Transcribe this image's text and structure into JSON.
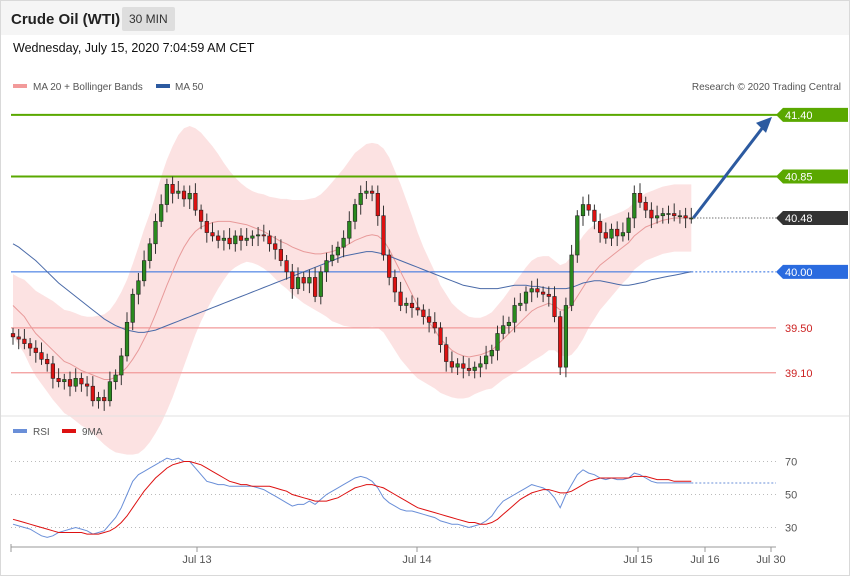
{
  "header": {
    "title": "Crude Oil (WTI)",
    "interval": "30 MIN"
  },
  "timestamp": "Wednesday, July 15, 2020 7:04:59 AM CET",
  "legend": {
    "ma20": "MA 20 + Bollinger Bands",
    "ma50": "MA 50",
    "rsi": "RSI",
    "ma9": "9MA"
  },
  "copyright": "Research © 2020 Trading Central",
  "colors": {
    "candle": "#dd1111",
    "candle_dark": "#222222",
    "band": "#fbd8d8",
    "ma20": "#e89a9a",
    "ma50": "#4a6aa8",
    "target": "#5aa800",
    "pivot": "#2a6bdf",
    "support": "#f29a9a",
    "last": "#333333",
    "rsi": "#6a8fd8",
    "rsi_ma": "#dd1111",
    "arrow": "#2c5aa0"
  },
  "chart_data": [
    {
      "type": "candlestick",
      "y_range": [
        38.75,
        41.55
      ],
      "x_ticks": [
        "Jul 13",
        "Jul 14",
        "Jul 15",
        "Jul 16",
        "Jul 30"
      ],
      "levels": [
        {
          "label": "41.40",
          "value": 41.4,
          "kind": "target"
        },
        {
          "label": "40.85",
          "value": 40.85,
          "kind": "target"
        },
        {
          "label": "40.48",
          "value": 40.48,
          "kind": "last"
        },
        {
          "label": "40.00",
          "value": 40.0,
          "kind": "pivot"
        },
        {
          "label": "39.50",
          "value": 39.5,
          "kind": "support"
        },
        {
          "label": "39.10",
          "value": 39.1,
          "kind": "support"
        }
      ],
      "close": [
        39.42,
        39.4,
        39.36,
        39.32,
        39.28,
        39.22,
        39.18,
        39.05,
        39.02,
        39.04,
        38.98,
        39.05,
        39.0,
        38.98,
        38.85,
        38.88,
        38.85,
        39.02,
        39.08,
        39.25,
        39.55,
        39.8,
        39.92,
        40.1,
        40.25,
        40.45,
        40.6,
        40.78,
        40.7,
        40.72,
        40.65,
        40.7,
        40.55,
        40.45,
        40.35,
        40.32,
        40.28,
        40.3,
        40.25,
        40.32,
        40.28,
        40.3,
        40.32,
        40.33,
        40.32,
        40.25,
        40.2,
        40.1,
        40.0,
        39.85,
        39.95,
        39.9,
        39.95,
        39.78,
        40.0,
        40.1,
        40.15,
        40.22,
        40.3,
        40.45,
        40.6,
        40.7,
        40.72,
        40.7,
        40.5,
        40.15,
        39.95,
        39.82,
        39.7,
        39.72,
        39.68,
        39.66,
        39.6,
        39.55,
        39.5,
        39.35,
        39.2,
        39.15,
        39.18,
        39.14,
        39.12,
        39.15,
        39.18,
        39.25,
        39.3,
        39.45,
        39.52,
        39.55,
        39.7,
        39.72,
        39.82,
        39.85,
        39.82,
        39.8,
        39.78,
        39.6,
        39.15,
        39.7,
        40.15,
        40.5,
        40.6,
        40.55,
        40.45,
        40.35,
        40.3,
        40.38,
        40.32,
        40.35,
        40.48,
        40.7,
        40.62,
        40.55,
        40.48,
        40.5,
        40.52,
        40.52,
        40.5,
        40.5,
        40.48,
        40.48
      ],
      "ma20": [
        39.7,
        39.65,
        39.6,
        39.52,
        39.45,
        39.4,
        39.35,
        39.3,
        39.25,
        39.2,
        39.18,
        39.15,
        39.12,
        39.1,
        39.08,
        39.06,
        39.04,
        39.04,
        39.06,
        39.1,
        39.15,
        39.22,
        39.3,
        39.4,
        39.5,
        39.62,
        39.75,
        39.88,
        40.0,
        40.12,
        40.22,
        40.3,
        40.36,
        40.4,
        40.42,
        40.44,
        40.45,
        40.45,
        40.45,
        40.44,
        40.43,
        40.42,
        40.4,
        40.38,
        40.36,
        40.33,
        40.3,
        40.27,
        40.25,
        40.22,
        40.2,
        40.18,
        40.17,
        40.16,
        40.16,
        40.17,
        40.18,
        40.2,
        40.22,
        40.25,
        40.28,
        40.3,
        40.32,
        40.33,
        40.32,
        40.28,
        40.2,
        40.1,
        40.0,
        39.9,
        39.8,
        39.7,
        39.62,
        39.55,
        39.48,
        39.4,
        39.35,
        39.3,
        39.27,
        39.25,
        39.24,
        39.25,
        39.26,
        39.28,
        39.3,
        39.35,
        39.4,
        39.45,
        39.5,
        39.55,
        39.6,
        39.65,
        39.68,
        39.7,
        39.72,
        39.7,
        39.66,
        39.66,
        39.7,
        39.78,
        39.86,
        39.94,
        40.0,
        40.06,
        40.1,
        40.14,
        40.18,
        40.22,
        40.26,
        40.32,
        40.36,
        40.4,
        40.42,
        40.44,
        40.46,
        40.47,
        40.48,
        40.48,
        40.48,
        40.48
      ],
      "bb_width": [
        0.28,
        0.3,
        0.33,
        0.36,
        0.38,
        0.4,
        0.42,
        0.44,
        0.45,
        0.46,
        0.47,
        0.48,
        0.49,
        0.5,
        0.52,
        0.55,
        0.58,
        0.62,
        0.67,
        0.72,
        0.78,
        0.85,
        0.92,
        0.98,
        1.02,
        1.06,
        1.1,
        1.12,
        1.12,
        1.1,
        1.06,
        1.0,
        0.92,
        0.84,
        0.76,
        0.68,
        0.6,
        0.52,
        0.45,
        0.4,
        0.36,
        0.33,
        0.32,
        0.32,
        0.33,
        0.34,
        0.36,
        0.38,
        0.4,
        0.42,
        0.44,
        0.46,
        0.48,
        0.5,
        0.53,
        0.57,
        0.62,
        0.66,
        0.7,
        0.74,
        0.78,
        0.8,
        0.82,
        0.82,
        0.82,
        0.82,
        0.82,
        0.8,
        0.78,
        0.74,
        0.7,
        0.65,
        0.6,
        0.56,
        0.52,
        0.48,
        0.45,
        0.42,
        0.4,
        0.38,
        0.36,
        0.34,
        0.33,
        0.33,
        0.34,
        0.35,
        0.36,
        0.38,
        0.4,
        0.42,
        0.44,
        0.45,
        0.45,
        0.44,
        0.42,
        0.4,
        0.4,
        0.42,
        0.44,
        0.46,
        0.46,
        0.44,
        0.42,
        0.4,
        0.38,
        0.36,
        0.34,
        0.32,
        0.31,
        0.3,
        0.3,
        0.3,
        0.3,
        0.3,
        0.3,
        0.3,
        0.3,
        0.3,
        0.3,
        0.3
      ],
      "ma50": [
        40.25,
        40.22,
        40.18,
        40.14,
        40.1,
        40.05,
        40.0,
        39.95,
        39.9,
        39.86,
        39.82,
        39.78,
        39.74,
        39.7,
        39.66,
        39.62,
        39.58,
        39.55,
        39.52,
        39.5,
        39.48,
        39.47,
        39.46,
        39.46,
        39.47,
        39.48,
        39.5,
        39.52,
        39.54,
        39.56,
        39.58,
        39.6,
        39.62,
        39.64,
        39.66,
        39.68,
        39.7,
        39.72,
        39.74,
        39.76,
        39.78,
        39.8,
        39.82,
        39.84,
        39.86,
        39.88,
        39.9,
        39.92,
        39.94,
        39.96,
        39.98,
        40.0,
        40.02,
        40.04,
        40.06,
        40.08,
        40.1,
        40.12,
        40.14,
        40.15,
        40.16,
        40.17,
        40.18,
        40.18,
        40.17,
        40.16,
        40.14,
        40.12,
        40.1,
        40.08,
        40.06,
        40.04,
        40.02,
        40.0,
        39.98,
        39.96,
        39.94,
        39.92,
        39.9,
        39.88,
        39.87,
        39.86,
        39.85,
        39.85,
        39.85,
        39.85,
        39.86,
        39.87,
        39.88,
        39.88,
        39.88,
        39.87,
        39.87,
        39.86,
        39.85,
        39.85,
        39.85,
        39.85,
        39.86,
        39.88,
        39.9,
        39.91,
        39.92,
        39.92,
        39.91,
        39.9,
        39.89,
        39.88,
        39.88,
        39.89,
        39.9,
        39.91,
        39.93,
        39.94,
        39.95,
        39.96,
        39.97,
        39.98,
        39.99,
        40.0
      ]
    },
    {
      "type": "line",
      "y_range": [
        20,
        80
      ],
      "y_ticks": [
        "70",
        "50",
        "30"
      ],
      "rsi": [
        32,
        31,
        30,
        29,
        27,
        25,
        24,
        25,
        27,
        28,
        29,
        30,
        29,
        28,
        26,
        27,
        28,
        32,
        36,
        42,
        50,
        58,
        62,
        64,
        66,
        68,
        70,
        72,
        71,
        72,
        70,
        70,
        66,
        62,
        58,
        57,
        56,
        56,
        55,
        55,
        55,
        55,
        55,
        54,
        53,
        51,
        49,
        47,
        45,
        43,
        44,
        44,
        46,
        44,
        47,
        50,
        52,
        54,
        56,
        58,
        60,
        61,
        60,
        58,
        54,
        48,
        45,
        43,
        41,
        40,
        40,
        39,
        38,
        37,
        36,
        34,
        33,
        32,
        32,
        31,
        30,
        31,
        32,
        34,
        37,
        42,
        46,
        48,
        50,
        52,
        54,
        56,
        55,
        54,
        52,
        48,
        42,
        50,
        56,
        62,
        65,
        63,
        62,
        60,
        59,
        60,
        59,
        59,
        60,
        63,
        62,
        60,
        58,
        57,
        57,
        57,
        57,
        57,
        57,
        57
      ],
      "rsi_ma": [
        35,
        34,
        33,
        32,
        31,
        30,
        29,
        28,
        27,
        27,
        27,
        27,
        27,
        26,
        26,
        26,
        27,
        28,
        30,
        33,
        37,
        42,
        47,
        52,
        56,
        60,
        63,
        66,
        68,
        69,
        70,
        70,
        69,
        68,
        66,
        64,
        62,
        60,
        58,
        57,
        56,
        56,
        55,
        55,
        55,
        55,
        54,
        53,
        52,
        50,
        49,
        48,
        47,
        46,
        46,
        46,
        47,
        48,
        50,
        52,
        54,
        55,
        56,
        56,
        55,
        54,
        52,
        50,
        48,
        46,
        44,
        42,
        41,
        40,
        39,
        38,
        37,
        36,
        35,
        34,
        33,
        33,
        32,
        32,
        33,
        35,
        38,
        41,
        44,
        47,
        49,
        51,
        52,
        53,
        53,
        52,
        51,
        51,
        52,
        54,
        56,
        58,
        59,
        60,
        60,
        60,
        60,
        60,
        60,
        61,
        61,
        61,
        60,
        59,
        59,
        59,
        58,
        58,
        58,
        58
      ]
    }
  ]
}
